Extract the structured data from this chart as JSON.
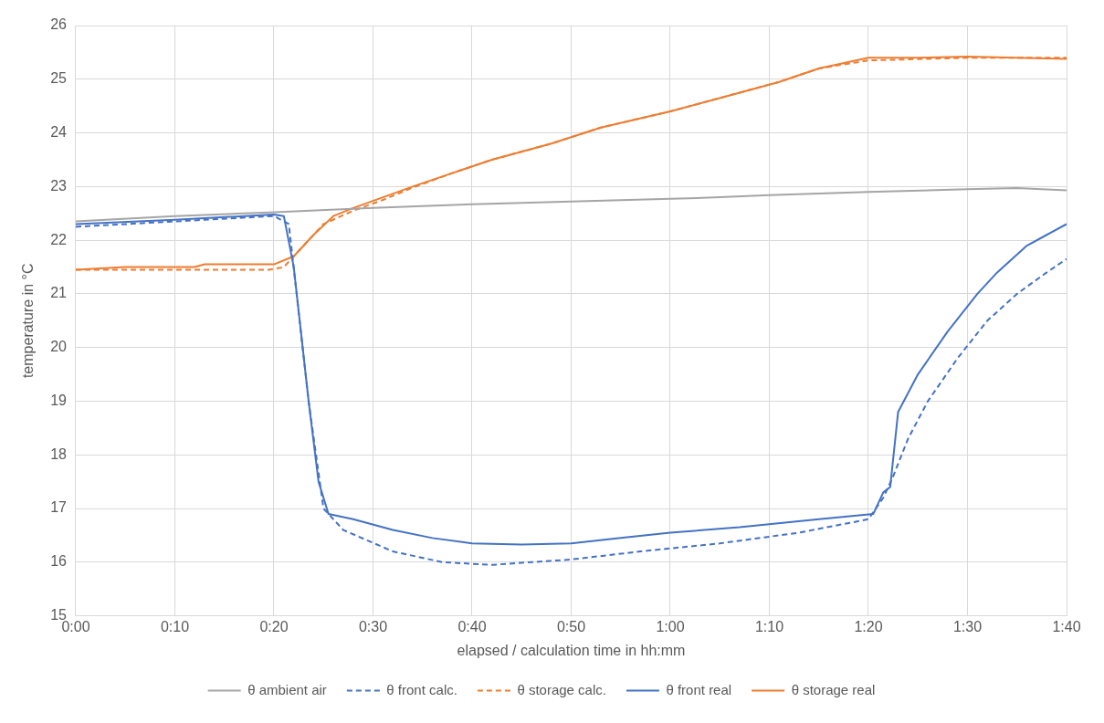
{
  "chart_data": {
    "type": "line",
    "xlabel": "elapsed / calculation time in hh:mm",
    "ylabel": "temperature in °C",
    "xlim": [
      0,
      100
    ],
    "xticks": [
      {
        "value": 0,
        "label": "0:00"
      },
      {
        "value": 10,
        "label": "0:10"
      },
      {
        "value": 20,
        "label": "0:20"
      },
      {
        "value": 30,
        "label": "0:30"
      },
      {
        "value": 40,
        "label": "0:40"
      },
      {
        "value": 50,
        "label": "0:50"
      },
      {
        "value": 60,
        "label": "1:00"
      },
      {
        "value": 70,
        "label": "1:10"
      },
      {
        "value": 80,
        "label": "1:20"
      },
      {
        "value": 90,
        "label": "1:30"
      },
      {
        "value": 100,
        "label": "1:40"
      }
    ],
    "ylim": [
      15,
      26
    ],
    "yticks": [
      15,
      16,
      17,
      18,
      19,
      20,
      21,
      22,
      23,
      24,
      25,
      26
    ],
    "grid": true,
    "legend": "bottom",
    "marker": "none",
    "series": [
      {
        "name": "θ ambient air",
        "color": "#a5a5a5",
        "line_style": "solid",
        "x": [
          0,
          10,
          20,
          30,
          40,
          50,
          60,
          65,
          70,
          80,
          90,
          95,
          100
        ],
        "values": [
          22.35,
          22.45,
          22.52,
          22.6,
          22.67,
          22.72,
          22.77,
          22.8,
          22.84,
          22.9,
          22.95,
          22.97,
          22.93
        ]
      },
      {
        "name": "θ front calc.",
        "color": "#4472c4",
        "line_style": "dashed",
        "x": [
          0,
          10,
          20,
          21.5,
          23.5,
          25,
          27,
          32,
          37,
          42,
          50,
          57,
          65,
          73,
          80,
          81.5,
          82.5,
          84,
          86,
          89,
          92,
          95,
          98,
          100
        ],
        "values": [
          22.25,
          22.35,
          22.45,
          22.3,
          19.0,
          17.0,
          16.6,
          16.2,
          16.0,
          15.95,
          16.05,
          16.2,
          16.35,
          16.55,
          16.8,
          17.2,
          17.6,
          18.3,
          19.0,
          19.8,
          20.5,
          21.0,
          21.4,
          21.65
        ]
      },
      {
        "name": "θ storage calc.",
        "color": "#ed7d31",
        "line_style": "dashed",
        "x": [
          0,
          10,
          19.5,
          21,
          23,
          25,
          28,
          31,
          34,
          38,
          42,
          48,
          53,
          60,
          66,
          71,
          75,
          80,
          90,
          100
        ],
        "values": [
          21.45,
          21.45,
          21.45,
          21.5,
          21.9,
          22.3,
          22.55,
          22.75,
          22.98,
          23.25,
          23.5,
          23.8,
          24.1,
          24.4,
          24.7,
          24.95,
          25.2,
          25.35,
          25.4,
          25.4
        ]
      },
      {
        "name": "θ front real",
        "color": "#4472c4",
        "line_style": "solid",
        "x": [
          0,
          10,
          20,
          21,
          22,
          23.5,
          24.5,
          25.5,
          28,
          32,
          36,
          40,
          45,
          50,
          55,
          60,
          67,
          75,
          80.5,
          81.5,
          82.2,
          83,
          85,
          88,
          91,
          93,
          96,
          98,
          100
        ],
        "values": [
          22.3,
          22.38,
          22.48,
          22.45,
          21.5,
          19.0,
          17.5,
          16.9,
          16.8,
          16.6,
          16.45,
          16.35,
          16.33,
          16.35,
          16.45,
          16.55,
          16.65,
          16.8,
          16.9,
          17.3,
          17.4,
          18.8,
          19.5,
          20.3,
          21.0,
          21.4,
          21.9,
          22.1,
          22.3
        ]
      },
      {
        "name": "θ storage real",
        "color": "#ed7d31",
        "line_style": "solid",
        "x": [
          0,
          5,
          12,
          13,
          20,
          22,
          24,
          26,
          28,
          31,
          34,
          38,
          42,
          48,
          53,
          60,
          66,
          71,
          75,
          80,
          85,
          90,
          95,
          100
        ],
        "values": [
          21.45,
          21.5,
          21.5,
          21.55,
          21.55,
          21.7,
          22.1,
          22.45,
          22.6,
          22.8,
          23.0,
          23.25,
          23.5,
          23.8,
          24.1,
          24.4,
          24.7,
          24.95,
          25.2,
          25.4,
          25.4,
          25.42,
          25.4,
          25.38
        ]
      }
    ]
  }
}
